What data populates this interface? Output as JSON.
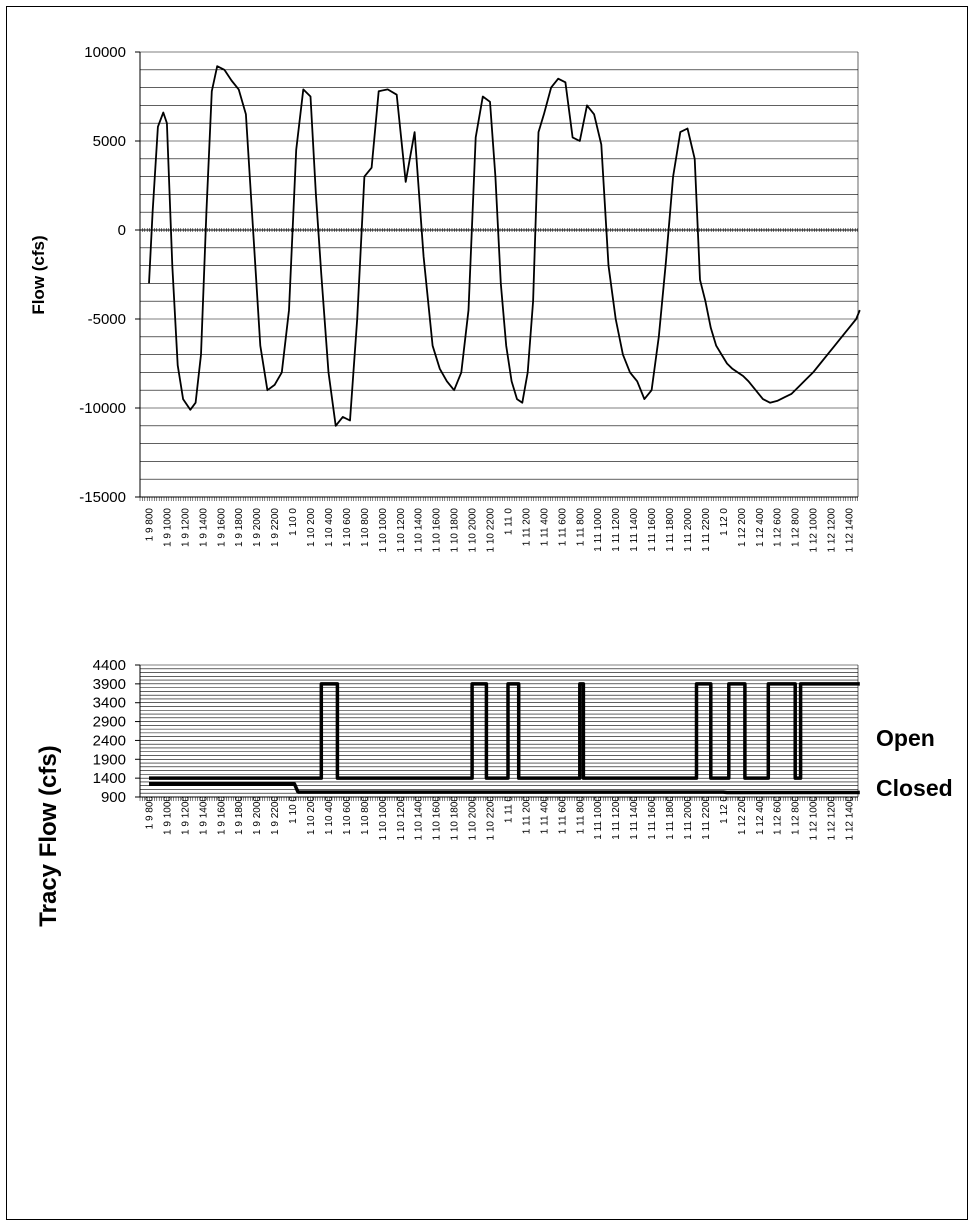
{
  "chart_data": [
    {
      "type": "line",
      "title": "",
      "xlabel": "",
      "ylabel": "Flow (cfs)",
      "ylim": [
        -15000,
        10000
      ],
      "yticks": [
        10000,
        5000,
        0,
        -5000,
        -10000,
        -15000
      ],
      "grid": true,
      "legend": "none",
      "x_categories": [
        "1 9 800",
        "1 9 1000",
        "1 9 1200",
        "1 9 1400",
        "1 9 1600",
        "1 9 1800",
        "1 9 2000",
        "1 9 2200",
        "1 10 0",
        "1 10 200",
        "1 10 400",
        "1 10 600",
        "1 10 800",
        "1 10 1000",
        "1 10 1200",
        "1 10 1400",
        "1 10 1600",
        "1 10 1800",
        "1 10 2000",
        "1 10 2200",
        "1 11 0",
        "1 11 200",
        "1 11 400",
        "1 11 600",
        "1 11 800",
        "1 11 1000",
        "1 11 1200",
        "1 11 1400",
        "1 11 1600",
        "1 11 1800",
        "1 11 2000",
        "1 11 2200",
        "1 12 0",
        "1 12 200",
        "1 12 400",
        "1 12 600",
        "1 12 800",
        "1 12 1000",
        "1 12 1200",
        "1 12 1400"
      ],
      "series": [
        {
          "x": [
            0,
            0.2,
            0.5,
            0.8,
            1.0,
            1.3,
            1.6,
            1.9,
            2.3,
            2.6,
            2.9,
            3.2,
            3.5,
            3.8,
            4.2,
            4.6,
            5.0,
            5.4,
            5.8,
            6.2,
            6.6,
            7.0,
            7.4,
            7.8,
            8.2,
            8.6,
            9.0,
            9.3,
            9.6,
            10.0,
            10.4,
            10.8,
            11.2,
            11.6,
            12.0,
            12.4,
            12.8,
            13.3,
            13.8,
            14.3,
            14.8,
            15.3,
            15.8,
            16.2,
            16.6,
            17.0,
            17.4,
            17.8,
            18.2,
            18.6,
            19.0,
            19.3,
            19.6,
            19.9,
            20.2,
            20.5,
            20.8,
            21.1,
            21.4,
            21.7,
            22.0,
            22.4,
            22.8,
            23.2,
            23.6,
            24.0,
            24.4,
            24.8,
            25.2,
            25.6,
            26.0,
            26.4,
            26.8,
            27.2,
            27.6,
            28.0,
            28.4,
            28.8,
            29.2,
            29.6,
            30.0,
            30.4,
            30.7,
            31.0,
            31.3,
            31.6,
            31.9,
            32.2,
            32.5,
            32.8,
            33.1,
            33.4,
            33.8,
            34.2,
            34.6,
            35.0,
            35.4,
            35.8,
            36.2,
            36.6,
            37.0,
            37.4,
            37.8,
            38.2,
            38.6,
            39.0,
            39.4,
            39.6
          ],
          "values": [
            -3000,
            1000,
            5800,
            6600,
            6000,
            -2000,
            -7600,
            -9500,
            -10100,
            -9700,
            -7000,
            1000,
            7800,
            9200,
            9000,
            8400,
            7900,
            6500,
            0,
            -6500,
            -9000,
            -8700,
            -8000,
            -4500,
            4500,
            7900,
            7500,
            2000,
            -2500,
            -8000,
            -11000,
            -10500,
            -10700,
            -5000,
            3000,
            3500,
            7800,
            7900,
            7600,
            2700,
            5500,
            -1500,
            -6500,
            -7800,
            -8500,
            -9000,
            -8000,
            -4500,
            5200,
            7500,
            7200,
            3000,
            -3000,
            -6500,
            -8500,
            -9500,
            -9700,
            -8000,
            -4000,
            5500,
            6500,
            8000,
            8500,
            8300,
            5200,
            5000,
            7000,
            6500,
            4800,
            -2000,
            -5000,
            -7000,
            -8000,
            -8500,
            -9500,
            -9000,
            -6000,
            -1800,
            3000,
            5500,
            5700,
            4000,
            -2800,
            -4000,
            -5500,
            -6500,
            -7000,
            -7500,
            -7800,
            -8000,
            -8200,
            -8500,
            -9000,
            -9500,
            -9700,
            -9600,
            -9400,
            -9200,
            -8800,
            -8400,
            -8000,
            -7500,
            -7000,
            -6500,
            -6000,
            -5500,
            -5000,
            -4500
          ]
        }
      ]
    },
    {
      "type": "line",
      "title": "",
      "xlabel": "",
      "ylabel": "Tracy Flow (cfs)",
      "ylim": [
        900,
        4400
      ],
      "yticks": [
        4400,
        3900,
        3400,
        2900,
        2400,
        1900,
        1400,
        900
      ],
      "grid": true,
      "legend": "none",
      "annotations": [
        "Open",
        "Closed"
      ],
      "x_categories": [
        "1 9 800",
        "1 9 1000",
        "1 9 1200",
        "1 9 1400",
        "1 9 1600",
        "1 9 1800",
        "1 9 2000",
        "1 9 2200",
        "1 10 0",
        "1 10 200",
        "1 10 400",
        "1 10 600",
        "1 10 800",
        "1 10 1000",
        "1 10 1200",
        "1 10 1400",
        "1 10 1600",
        "1 10 1800",
        "1 10 2000",
        "1 10 2200",
        "1 11 0",
        "1 11 200",
        "1 11 400",
        "1 11 600",
        "1 11 800",
        "1 11 1000",
        "1 11 1200",
        "1 11 1400",
        "1 11 1600",
        "1 11 1800",
        "1 11 2000",
        "1 11 2200",
        "1 12 0",
        "1 12 200",
        "1 12 400",
        "1 12 600",
        "1 12 800",
        "1 12 1000",
        "1 12 1200",
        "1 12 1400"
      ],
      "series": [
        {
          "x": [
            0,
            9.6,
            9.6,
            10.5,
            10.5,
            18.0,
            18.0,
            18.8,
            18.8,
            20.0,
            20.0,
            20.6,
            20.6,
            24.0,
            24.0,
            24.2,
            24.2,
            30.5,
            30.5,
            31.3,
            31.3,
            32.3,
            32.3,
            33.2,
            33.2,
            34.5,
            34.5,
            36.0,
            36.0,
            36.3,
            36.3,
            39.6
          ],
          "values": [
            1400,
            1400,
            3900,
            3900,
            1400,
            1400,
            3900,
            3900,
            1400,
            1400,
            3900,
            3900,
            1400,
            1400,
            3900,
            3900,
            1400,
            1400,
            3900,
            3900,
            1400,
            1400,
            3900,
            3900,
            1400,
            1400,
            3900,
            3900,
            1400,
            1400,
            3900,
            3900
          ]
        },
        {
          "x": [
            0,
            8.1,
            8.3,
            32.0,
            32.2,
            39.6
          ],
          "values": [
            1250,
            1250,
            1030,
            1030,
            1020,
            1020
          ]
        }
      ]
    }
  ]
}
